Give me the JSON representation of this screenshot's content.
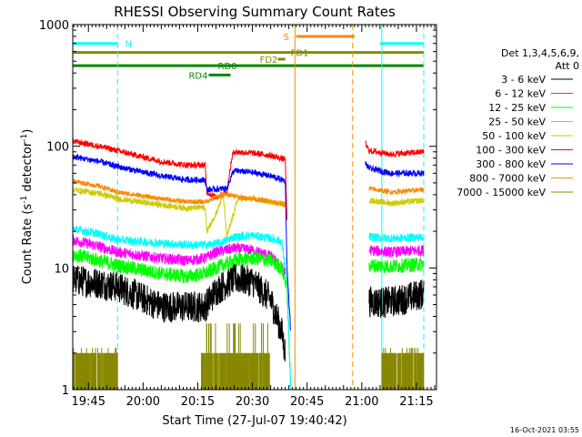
{
  "chart_data": {
    "type": "line",
    "title": "RHESSI Observing Summary Count Rates",
    "xlabel": "Start Time (27-Jul-07 19:40:42)",
    "ylabel": "Count Rate (s⁻¹ detector⁻¹)",
    "ylabel_main": "Count Rate (s",
    "ylabel_sup1": "-1",
    "ylabel_mid": " detector",
    "ylabel_sup2": "-1",
    "ylabel_end": ")",
    "y_scale": "log",
    "ylim": [
      1,
      1000
    ],
    "xlim": [
      "19:40:42",
      "21:20:30"
    ],
    "x_ticks": [
      "19:45",
      "20:00",
      "20:15",
      "20:30",
      "20:45",
      "21:00",
      "21:15"
    ],
    "y_ticks": [
      "1",
      "10",
      "100",
      "1000"
    ],
    "timestamp": "16-Oct-2021 03:55",
    "legend": {
      "placement": "right",
      "header1": "Det 1,3,4,5,6,9,",
      "header2": "Att 0",
      "entries": [
        {
          "label": "3 - 6 keV",
          "color": "#000000"
        },
        {
          "label": "6 - 12 keV",
          "color": "#ff00ff"
        },
        {
          "label": "12 - 25 keV",
          "color": "#00ff00"
        },
        {
          "label": "25 - 50 keV",
          "color": "#00ffff"
        },
        {
          "label": "50 - 100 keV",
          "color": "#cccc00"
        },
        {
          "label": "100 - 300 keV",
          "color": "#ff0000"
        },
        {
          "label": "300 - 800 keV",
          "color": "#0000ff"
        },
        {
          "label": "800 - 7000 keV",
          "color": "#ff8800"
        },
        {
          "label": "7000 - 15000 keV",
          "color": "#888800"
        }
      ]
    },
    "flag_bars": [
      {
        "label": "N",
        "color": "#00ffff",
        "start": "19:40:42",
        "end": "19:53:00",
        "y": 700,
        "label_at": "19:55:00"
      },
      {
        "label": "N",
        "color": "#00ffff",
        "start": "21:05:00",
        "end": "21:17:00",
        "y": 700,
        "label_at": ""
      },
      {
        "label": "S",
        "color": "#ff8800",
        "start": "20:42:00",
        "end": "20:58:00",
        "y": 800,
        "label_at": "20:38:30"
      },
      {
        "label": "FD1",
        "color": "#888800",
        "start": "19:40:42",
        "end": "21:17:00",
        "y": 590,
        "label_at": "20:40:30"
      },
      {
        "label": "FD2",
        "color": "#888800",
        "start": "20:37:00",
        "end": "20:39:00",
        "y": 520,
        "label_at": "20:32:00"
      },
      {
        "label": "RD0",
        "color": "#008800",
        "start": "19:40:42",
        "end": "21:17:00",
        "y": 460,
        "label_at": "20:20:30"
      },
      {
        "label": "RD4",
        "color": "#008800",
        "start": "20:18:00",
        "end": "20:24:00",
        "y": 385,
        "label_at": "20:12:30"
      }
    ],
    "markers": [
      {
        "time": "19:53:00",
        "color": "#00ffff",
        "style": "dashed"
      },
      {
        "time": "21:05:30",
        "color": "#00ffff",
        "style": "solid"
      },
      {
        "time": "21:17:00",
        "color": "#00ffff",
        "style": "dashed"
      },
      {
        "time": "20:41:40",
        "color": "#ff8800",
        "style": "solid"
      },
      {
        "time": "20:57:30",
        "color": "#ff8800",
        "style": "dashed"
      }
    ],
    "series": [
      {
        "name": "3 - 6 keV",
        "color": "#000000",
        "noise": 0.13,
        "segments": [
          {
            "x": [
              "19:40:42",
              "19:48:00",
              "19:53:00",
              "20:05:00",
              "20:17:00",
              "20:20:00",
              "20:25:00",
              "20:30:00",
              "20:35:00",
              "20:38:00",
              "20:39:00"
            ],
            "y": [
              8,
              7.5,
              7,
              4.8,
              4.8,
              6.5,
              8.2,
              7.8,
              5.5,
              3,
              2
            ]
          },
          {
            "x": [
              "21:02:00",
              "21:06:00",
              "21:10:00",
              "21:14:00",
              "21:17:00"
            ],
            "y": [
              5.3,
              5.2,
              5.4,
              5.8,
              6.2
            ]
          }
        ]
      },
      {
        "name": "6 - 12 keV",
        "color": "#ff00ff",
        "noise": 0.045,
        "segments": [
          {
            "x": [
              "19:40:42",
              "19:48:00",
              "19:53:00",
              "20:05:00",
              "20:12:00",
              "20:17:00",
              "20:20:00",
              "20:25:00",
              "20:30:00",
              "20:35:00",
              "20:38:00",
              "20:39:00"
            ],
            "y": [
              17,
              15,
              13.5,
              12,
              11.5,
              12,
              13.5,
              14.5,
              14,
              12.5,
              10,
              9
            ]
          },
          {
            "x": [
              "21:02:00",
              "21:08:00",
              "21:17:00"
            ],
            "y": [
              14,
              13.5,
              14
            ]
          }
        ]
      },
      {
        "name": "12 - 25 keV",
        "color": "#00ff00",
        "noise": 0.06,
        "segments": [
          {
            "x": [
              "19:40:42",
              "19:48:00",
              "19:53:00",
              "20:05:00",
              "20:12:00",
              "20:17:00",
              "20:20:00",
              "20:25:00",
              "20:30:00",
              "20:35:00",
              "20:38:00",
              "20:39:30",
              "20:40:30"
            ],
            "y": [
              13,
              11.5,
              10.5,
              9,
              8.5,
              9,
              10,
              11.5,
              12,
              11.5,
              10,
              7,
              1
            ]
          },
          {
            "x": [
              "21:02:00",
              "21:08:00",
              "21:17:00"
            ],
            "y": [
              10.5,
              10.3,
              10.8
            ]
          }
        ]
      },
      {
        "name": "25 - 50 keV",
        "color": "#00ffff",
        "noise": 0.035,
        "segments": [
          {
            "x": [
              "19:40:42",
              "19:48:00",
              "19:53:00",
              "20:05:00",
              "20:12:00",
              "20:17:00",
              "20:21:00",
              "20:25:00",
              "20:30:00",
              "20:35:00",
              "20:38:00",
              "20:39:30",
              "20:40:30"
            ],
            "y": [
              21,
              19,
              17,
              16,
              15.5,
              15.5,
              16,
              18,
              18.5,
              17.5,
              16.5,
              8,
              1
            ]
          },
          {
            "x": [
              "21:02:00",
              "21:08:00",
              "21:17:00"
            ],
            "y": [
              18,
              17.5,
              18
            ]
          }
        ]
      },
      {
        "name": "50 - 100 keV",
        "color": "#cccc00",
        "noise": 0.025,
        "segments": [
          {
            "x": [
              "19:40:42",
              "19:48:00",
              "19:53:00",
              "20:05:00",
              "20:12:00",
              "20:17:00",
              "20:17:30",
              "20:20:00",
              "20:22:00",
              "20:23:00",
              "20:26:00",
              "20:30:00",
              "20:35:00",
              "20:38:00",
              "20:39:00"
            ],
            "y": [
              44,
              41,
              37,
              33,
              31,
              31.5,
              20,
              28,
              40,
              18,
              37,
              37,
              35,
              34,
              33
            ]
          },
          {
            "x": [
              "21:02:00",
              "21:08:00",
              "21:17:00"
            ],
            "y": [
              36,
              34,
              36
            ]
          }
        ]
      },
      {
        "name": "100 - 300 keV",
        "color": "#ff0000",
        "noise": 0.025,
        "segments": [
          {
            "x": [
              "19:40:42",
              "19:48:00",
              "19:53:00",
              "20:05:00",
              "20:12:00",
              "20:17:00",
              "20:17:30",
              "20:20:00",
              "20:23:00",
              "20:24:30",
              "20:25:00",
              "20:30:00",
              "20:35:00",
              "20:39:00",
              "20:39:30"
            ],
            "y": [
              110,
              100,
              92,
              75,
              70,
              70,
              42,
              38,
              42,
              85,
              90,
              88,
              84,
              78,
              25
            ]
          },
          {
            "x": [
              "21:01:00",
              "21:02:00",
              "21:08:00",
              "21:17:00"
            ],
            "y": [
              105,
              92,
              86,
              90
            ]
          }
        ]
      },
      {
        "name": "300 - 800 keV",
        "color": "#0000ff",
        "noise": 0.025,
        "segments": [
          {
            "x": [
              "19:40:42",
              "19:48:00",
              "19:53:00",
              "20:05:00",
              "20:12:00",
              "20:17:00",
              "20:17:30",
              "20:23:00",
              "20:24:30",
              "20:25:00",
              "20:30:00",
              "20:35:00",
              "20:39:00",
              "20:39:30",
              "20:40:30"
            ],
            "y": [
              82,
              75,
              68,
              57,
              53,
              53,
              44,
              45,
              60,
              63,
              61,
              57,
              52,
              10,
              3
            ]
          },
          {
            "x": [
              "21:01:00",
              "21:02:00",
              "21:08:00",
              "21:17:00"
            ],
            "y": [
              72,
              66,
              60,
              60
            ]
          }
        ]
      },
      {
        "name": "800 - 7000 keV",
        "color": "#ff8800",
        "noise": 0.02,
        "segments": [
          {
            "x": [
              "19:40:42",
              "19:48:00",
              "19:53:00",
              "20:05:00",
              "20:12:00",
              "20:17:00",
              "20:20:00",
              "20:22:00",
              "20:24:00",
              "20:27:00",
              "20:30:00",
              "20:35:00",
              "20:39:00"
            ],
            "y": [
              52,
              47,
              42,
              37,
              35,
              35,
              38,
              40,
              40,
              38,
              37,
              35,
              33
            ]
          },
          {
            "x": [
              "21:02:00",
              "21:08:00",
              "21:17:00"
            ],
            "y": [
              45,
              42,
              44
            ]
          }
        ]
      }
    ],
    "noise_series": {
      "name": "7000 - 15000 keV",
      "color": "#888800",
      "base": 1,
      "spike_value": 2,
      "segments": [
        {
          "start": "19:40:42",
          "end": "19:53:00",
          "max": 2.2
        },
        {
          "start": "20:16:00",
          "end": "20:35:00",
          "max": 3.5
        },
        {
          "start": "21:05:30",
          "end": "21:17:00",
          "max": 2.2
        }
      ]
    }
  }
}
